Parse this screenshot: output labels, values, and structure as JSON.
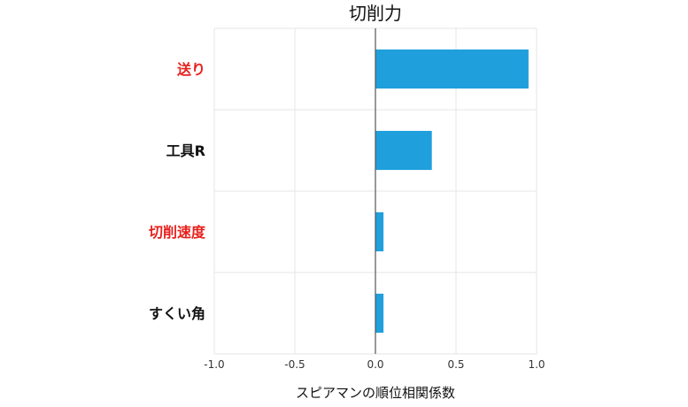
{
  "chart_data": {
    "type": "bar",
    "orientation": "horizontal",
    "title": "切削力",
    "xlabel": "スピアマンの順位相関係数",
    "ylabel": "",
    "xlim": [
      -1.0,
      1.0
    ],
    "xticks": [
      "-1.0",
      "-0.5",
      "0.0",
      "0.5",
      "1.0"
    ],
    "grid": true,
    "categories": [
      "送り",
      "工具R",
      "切削速度",
      "すくい角"
    ],
    "category_colors": [
      "#e8201c",
      "#111111",
      "#e8201c",
      "#111111"
    ],
    "values": [
      0.95,
      0.35,
      0.05,
      0.05
    ],
    "bar_color": "#1f9fdc"
  }
}
